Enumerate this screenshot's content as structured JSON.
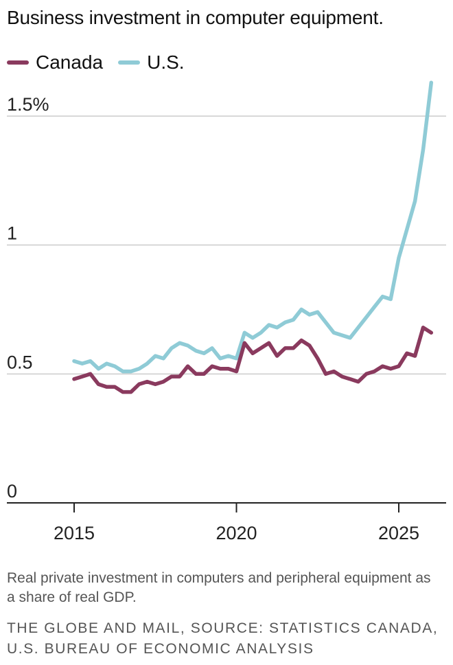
{
  "header": {
    "title": "Business investment in computer equipment."
  },
  "footer": {
    "note": "Real private investment in computers and peripheral equipment as a share of real GDP.",
    "source": "THE GLOBE AND MAIL, SOURCE: STATISTICS CANADA, U.S. BUREAU OF ECONOMIC ANALYSIS"
  },
  "chart_data": {
    "type": "line",
    "title": "Business investment in computer equipment.",
    "xlabel": "",
    "ylabel": "",
    "xlim": [
      2014.5,
      2026.5
    ],
    "ylim": [
      0,
      1.7
    ],
    "x_ticks": [
      2015,
      2020,
      2025
    ],
    "x_tick_labels": [
      "2015",
      "2020",
      "2025"
    ],
    "y_ticks": [
      0,
      0.5,
      1,
      1.5
    ],
    "y_tick_labels": [
      "0",
      "0.5",
      "1",
      "1.5%"
    ],
    "grid": true,
    "legend_position": "top-left",
    "x": [
      2015.0,
      2015.25,
      2015.5,
      2015.75,
      2016.0,
      2016.25,
      2016.5,
      2016.75,
      2017.0,
      2017.25,
      2017.5,
      2017.75,
      2018.0,
      2018.25,
      2018.5,
      2018.75,
      2019.0,
      2019.25,
      2019.5,
      2019.75,
      2020.0,
      2020.25,
      2020.5,
      2020.75,
      2021.0,
      2021.25,
      2021.5,
      2021.75,
      2022.0,
      2022.25,
      2022.5,
      2022.75,
      2023.0,
      2023.25,
      2023.5,
      2023.75,
      2024.0,
      2024.25,
      2024.5,
      2024.75,
      2025.0,
      2025.25,
      2025.5,
      2025.75,
      2026.0
    ],
    "series": [
      {
        "name": "Canada",
        "color": "#8a3a5e",
        "values": [
          0.48,
          0.49,
          0.5,
          0.46,
          0.45,
          0.45,
          0.43,
          0.43,
          0.46,
          0.47,
          0.46,
          0.47,
          0.49,
          0.49,
          0.53,
          0.5,
          0.5,
          0.53,
          0.52,
          0.52,
          0.51,
          0.62,
          0.58,
          0.6,
          0.62,
          0.57,
          0.6,
          0.6,
          0.63,
          0.61,
          0.56,
          0.5,
          0.51,
          0.49,
          0.48,
          0.47,
          0.5,
          0.51,
          0.53,
          0.52,
          0.53,
          0.58,
          0.57,
          0.68,
          0.66
        ]
      },
      {
        "name": "U.S.",
        "color": "#8fcbd6",
        "values": [
          0.55,
          0.54,
          0.55,
          0.52,
          0.54,
          0.53,
          0.51,
          0.51,
          0.52,
          0.54,
          0.57,
          0.56,
          0.6,
          0.62,
          0.61,
          0.59,
          0.58,
          0.6,
          0.56,
          0.57,
          0.56,
          0.66,
          0.64,
          0.66,
          0.69,
          0.68,
          0.7,
          0.71,
          0.75,
          0.73,
          0.74,
          0.7,
          0.66,
          0.65,
          0.64,
          0.68,
          0.72,
          0.76,
          0.8,
          0.79,
          0.95,
          1.06,
          1.17,
          1.37,
          1.63
        ]
      }
    ]
  }
}
